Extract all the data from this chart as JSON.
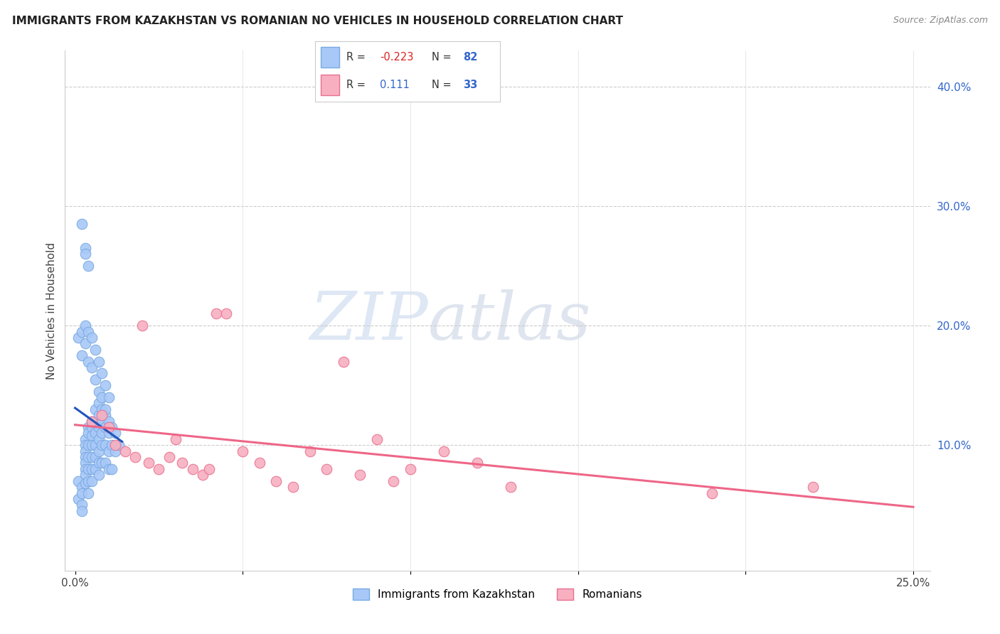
{
  "title": "IMMIGRANTS FROM KAZAKHSTAN VS ROMANIAN NO VEHICLES IN HOUSEHOLD CORRELATION CHART",
  "source": "Source: ZipAtlas.com",
  "ylabel": "No Vehicles in Household",
  "xlim": [
    -0.003,
    0.255
  ],
  "ylim": [
    -0.005,
    0.43
  ],
  "color_kaz": "#a8c8f8",
  "color_rom": "#f8b0c0",
  "color_kaz_edge": "#7aaae0",
  "color_rom_edge": "#e87090",
  "color_kaz_line": "#2255bb",
  "color_rom_line": "#ee6688",
  "watermark_zip": "ZIP",
  "watermark_atlas": "atlas",
  "kaz_x": [
    0.001,
    0.001,
    0.002,
    0.002,
    0.002,
    0.002,
    0.003,
    0.003,
    0.003,
    0.003,
    0.003,
    0.003,
    0.003,
    0.003,
    0.004,
    0.004,
    0.004,
    0.004,
    0.004,
    0.004,
    0.004,
    0.005,
    0.005,
    0.005,
    0.005,
    0.005,
    0.005,
    0.005,
    0.006,
    0.006,
    0.006,
    0.006,
    0.006,
    0.006,
    0.007,
    0.007,
    0.007,
    0.007,
    0.007,
    0.007,
    0.007,
    0.008,
    0.008,
    0.008,
    0.008,
    0.008,
    0.009,
    0.009,
    0.009,
    0.009,
    0.01,
    0.01,
    0.01,
    0.01,
    0.011,
    0.011,
    0.011,
    0.012,
    0.012,
    0.013,
    0.001,
    0.002,
    0.002,
    0.003,
    0.003,
    0.004,
    0.004,
    0.005,
    0.005,
    0.006,
    0.006,
    0.007,
    0.007,
    0.008,
    0.008,
    0.009,
    0.009,
    0.01,
    0.003,
    0.004,
    0.002,
    0.003
  ],
  "kaz_y": [
    0.07,
    0.055,
    0.065,
    0.06,
    0.05,
    0.045,
    0.105,
    0.1,
    0.095,
    0.09,
    0.085,
    0.08,
    0.075,
    0.068,
    0.115,
    0.11,
    0.1,
    0.09,
    0.08,
    0.07,
    0.06,
    0.12,
    0.115,
    0.108,
    0.1,
    0.09,
    0.08,
    0.07,
    0.13,
    0.12,
    0.11,
    0.1,
    0.09,
    0.08,
    0.135,
    0.125,
    0.115,
    0.105,
    0.095,
    0.085,
    0.075,
    0.13,
    0.12,
    0.11,
    0.1,
    0.085,
    0.125,
    0.115,
    0.1,
    0.085,
    0.12,
    0.11,
    0.095,
    0.08,
    0.115,
    0.1,
    0.08,
    0.11,
    0.095,
    0.1,
    0.19,
    0.195,
    0.175,
    0.2,
    0.185,
    0.195,
    0.17,
    0.19,
    0.165,
    0.18,
    0.155,
    0.17,
    0.145,
    0.16,
    0.14,
    0.15,
    0.13,
    0.14,
    0.265,
    0.25,
    0.285,
    0.26
  ],
  "rom_x": [
    0.005,
    0.008,
    0.01,
    0.012,
    0.015,
    0.018,
    0.02,
    0.022,
    0.025,
    0.028,
    0.03,
    0.032,
    0.035,
    0.038,
    0.04,
    0.042,
    0.045,
    0.05,
    0.055,
    0.06,
    0.065,
    0.07,
    0.075,
    0.08,
    0.085,
    0.09,
    0.095,
    0.1,
    0.11,
    0.12,
    0.13,
    0.19,
    0.22
  ],
  "rom_y": [
    0.12,
    0.125,
    0.115,
    0.1,
    0.095,
    0.09,
    0.2,
    0.085,
    0.08,
    0.09,
    0.105,
    0.085,
    0.08,
    0.075,
    0.08,
    0.21,
    0.21,
    0.095,
    0.085,
    0.07,
    0.065,
    0.095,
    0.08,
    0.17,
    0.075,
    0.105,
    0.07,
    0.08,
    0.095,
    0.085,
    0.065,
    0.06,
    0.065
  ]
}
